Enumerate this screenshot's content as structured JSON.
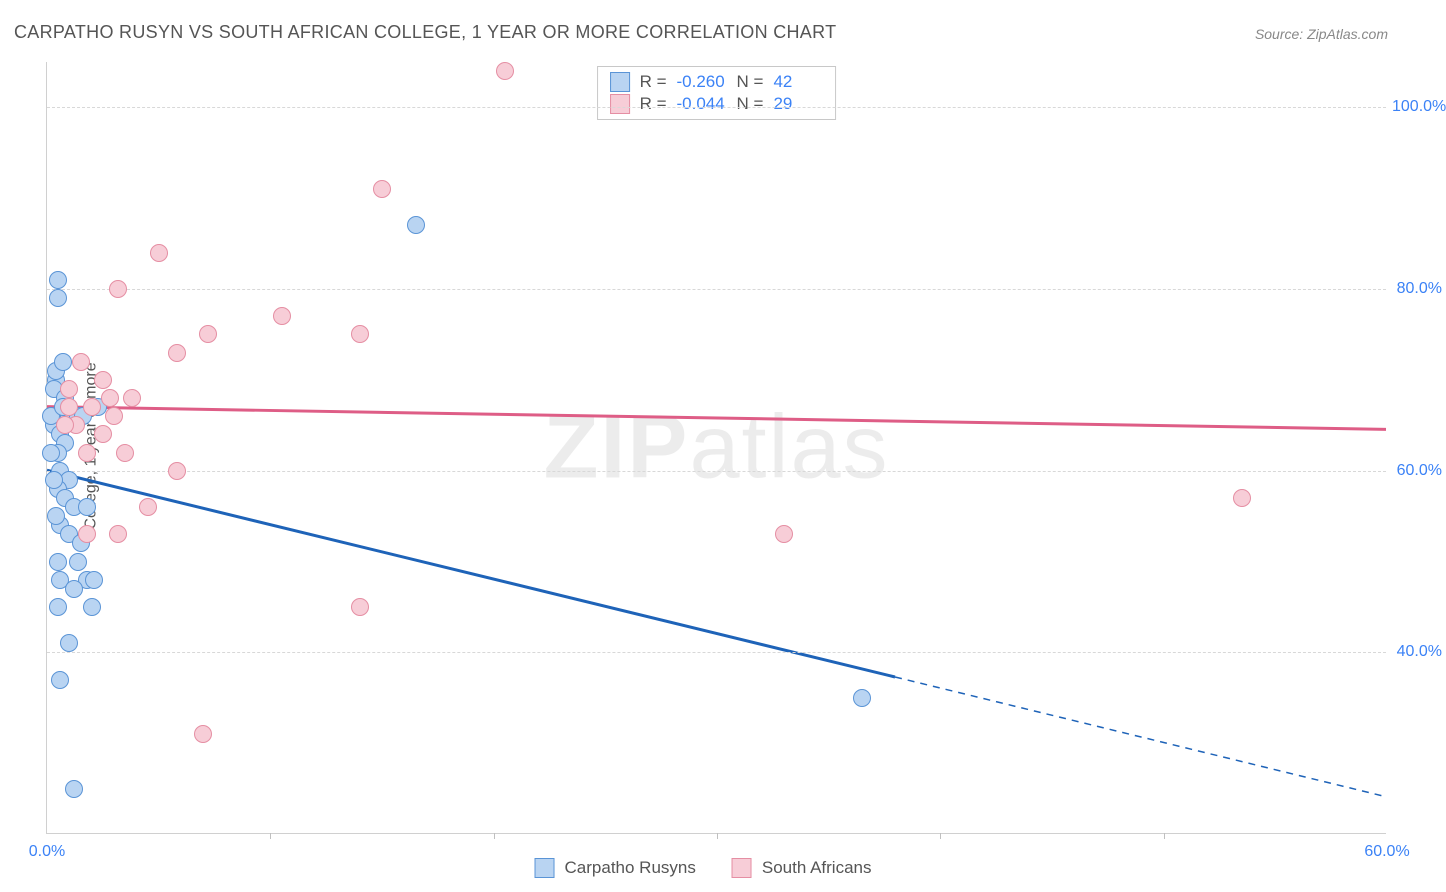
{
  "title": "CARPATHO RUSYN VS SOUTH AFRICAN COLLEGE, 1 YEAR OR MORE CORRELATION CHART",
  "source": "Source: ZipAtlas.com",
  "watermark": "ZIPatlas",
  "chart": {
    "type": "scatter",
    "background_color": "#ffffff",
    "grid_color": "#d8d8d8",
    "border_color": "#d0d0d0",
    "xlim": [
      0,
      60
    ],
    "ylim": [
      20,
      105
    ],
    "xticks": [
      0,
      10,
      20,
      30,
      40,
      50,
      60
    ],
    "xtick_labels": [
      "0.0%",
      "",
      "",
      "",
      "",
      "",
      "60.0%"
    ],
    "yticks": [
      40,
      60,
      80,
      100
    ],
    "ytick_labels": [
      "40.0%",
      "60.0%",
      "80.0%",
      "100.0%"
    ],
    "ylabel": "College, 1 year or more",
    "marker_size": 18,
    "series": [
      {
        "name": "Carpatho Rusyns",
        "fill_color": "#b9d4f2",
        "border_color": "#5a94d6",
        "trend_color": "#1e63b8",
        "trend_width": 3,
        "trend_solid_end_x": 38,
        "trend_y_at_x0": 60,
        "trend_y_at_x60": 24,
        "r": "-0.260",
        "n": "42",
        "points": [
          {
            "x": 0.5,
            "y": 81
          },
          {
            "x": 0.5,
            "y": 79
          },
          {
            "x": 0.4,
            "y": 70
          },
          {
            "x": 0.3,
            "y": 69
          },
          {
            "x": 0.8,
            "y": 68
          },
          {
            "x": 1.0,
            "y": 66
          },
          {
            "x": 0.3,
            "y": 65
          },
          {
            "x": 0.6,
            "y": 64
          },
          {
            "x": 0.8,
            "y": 63
          },
          {
            "x": 0.5,
            "y": 62
          },
          {
            "x": 0.6,
            "y": 60
          },
          {
            "x": 1.0,
            "y": 59
          },
          {
            "x": 0.5,
            "y": 58
          },
          {
            "x": 0.8,
            "y": 57
          },
          {
            "x": 1.2,
            "y": 56
          },
          {
            "x": 1.8,
            "y": 56
          },
          {
            "x": 0.6,
            "y": 54
          },
          {
            "x": 1.0,
            "y": 53
          },
          {
            "x": 1.5,
            "y": 52
          },
          {
            "x": 0.5,
            "y": 50
          },
          {
            "x": 1.8,
            "y": 48
          },
          {
            "x": 0.6,
            "y": 48
          },
          {
            "x": 1.2,
            "y": 47
          },
          {
            "x": 1.0,
            "y": 41
          },
          {
            "x": 0.6,
            "y": 37
          },
          {
            "x": 1.2,
            "y": 25
          },
          {
            "x": 16.5,
            "y": 87
          },
          {
            "x": 36.5,
            "y": 35
          },
          {
            "x": 2.3,
            "y": 67
          },
          {
            "x": 0.4,
            "y": 71
          },
          {
            "x": 0.7,
            "y": 72
          },
          {
            "x": 0.2,
            "y": 66
          },
          {
            "x": 0.3,
            "y": 59
          },
          {
            "x": 0.4,
            "y": 55
          },
          {
            "x": 1.4,
            "y": 50
          },
          {
            "x": 0.2,
            "y": 62
          },
          {
            "x": 0.5,
            "y": 45
          },
          {
            "x": 2.0,
            "y": 45
          },
          {
            "x": 2.1,
            "y": 48
          },
          {
            "x": 1.4,
            "y": 66
          },
          {
            "x": 0.7,
            "y": 67
          },
          {
            "x": 1.6,
            "y": 66
          }
        ]
      },
      {
        "name": "South Africans",
        "fill_color": "#f7cdd7",
        "border_color": "#e58ea3",
        "trend_color": "#de5d86",
        "trend_width": 3,
        "trend_solid_end_x": 60,
        "trend_y_at_x0": 67,
        "trend_y_at_x60": 64.5,
        "r": "-0.044",
        "n": "29",
        "points": [
          {
            "x": 20.5,
            "y": 104
          },
          {
            "x": 15,
            "y": 91
          },
          {
            "x": 5,
            "y": 84
          },
          {
            "x": 3.2,
            "y": 80
          },
          {
            "x": 10.5,
            "y": 77
          },
          {
            "x": 7.2,
            "y": 75
          },
          {
            "x": 14,
            "y": 75
          },
          {
            "x": 5.8,
            "y": 73
          },
          {
            "x": 1.5,
            "y": 72
          },
          {
            "x": 2.5,
            "y": 70
          },
          {
            "x": 1.0,
            "y": 69
          },
          {
            "x": 2.0,
            "y": 67
          },
          {
            "x": 3.8,
            "y": 68
          },
          {
            "x": 3.0,
            "y": 66
          },
          {
            "x": 1.3,
            "y": 65
          },
          {
            "x": 2.5,
            "y": 64
          },
          {
            "x": 1.8,
            "y": 62
          },
          {
            "x": 3.5,
            "y": 62
          },
          {
            "x": 5.8,
            "y": 60
          },
          {
            "x": 4.5,
            "y": 56
          },
          {
            "x": 3.2,
            "y": 53
          },
          {
            "x": 1.8,
            "y": 53
          },
          {
            "x": 14,
            "y": 45
          },
          {
            "x": 7,
            "y": 31
          },
          {
            "x": 33,
            "y": 53
          },
          {
            "x": 53.5,
            "y": 57
          },
          {
            "x": 1.0,
            "y": 67
          },
          {
            "x": 0.8,
            "y": 65
          },
          {
            "x": 2.8,
            "y": 68
          }
        ]
      }
    ]
  },
  "legend": {
    "series1": "Carpatho Rusyns",
    "series2": "South Africans"
  }
}
